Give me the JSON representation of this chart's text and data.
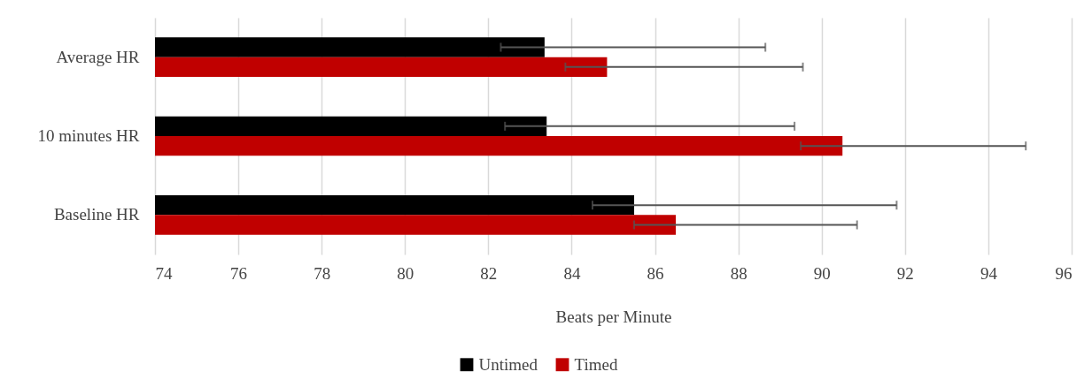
{
  "chart_data": {
    "type": "bar",
    "orientation": "horizontal",
    "xlabel": "Beats per Minute",
    "categories": [
      "Average HR",
      "10 minutes HR",
      "Baseline HR"
    ],
    "series": [
      {
        "name": "Untimed",
        "color": "#000000",
        "values": [
          83.35,
          83.4,
          85.5
        ],
        "errors": [
          [
            82.3,
            88.65
          ],
          [
            82.4,
            89.35
          ],
          [
            84.5,
            91.8
          ]
        ]
      },
      {
        "name": "Timed",
        "color": "#c00000",
        "values": [
          84.85,
          90.5,
          86.5
        ],
        "errors": [
          [
            83.85,
            89.55
          ],
          [
            89.5,
            94.9
          ],
          [
            85.5,
            90.85
          ]
        ]
      }
    ],
    "xlim": [
      74,
      96
    ],
    "xticks": [
      74,
      76,
      78,
      80,
      82,
      84,
      86,
      88,
      90,
      92,
      94,
      96
    ],
    "grid": "x",
    "legend": "bottom"
  }
}
